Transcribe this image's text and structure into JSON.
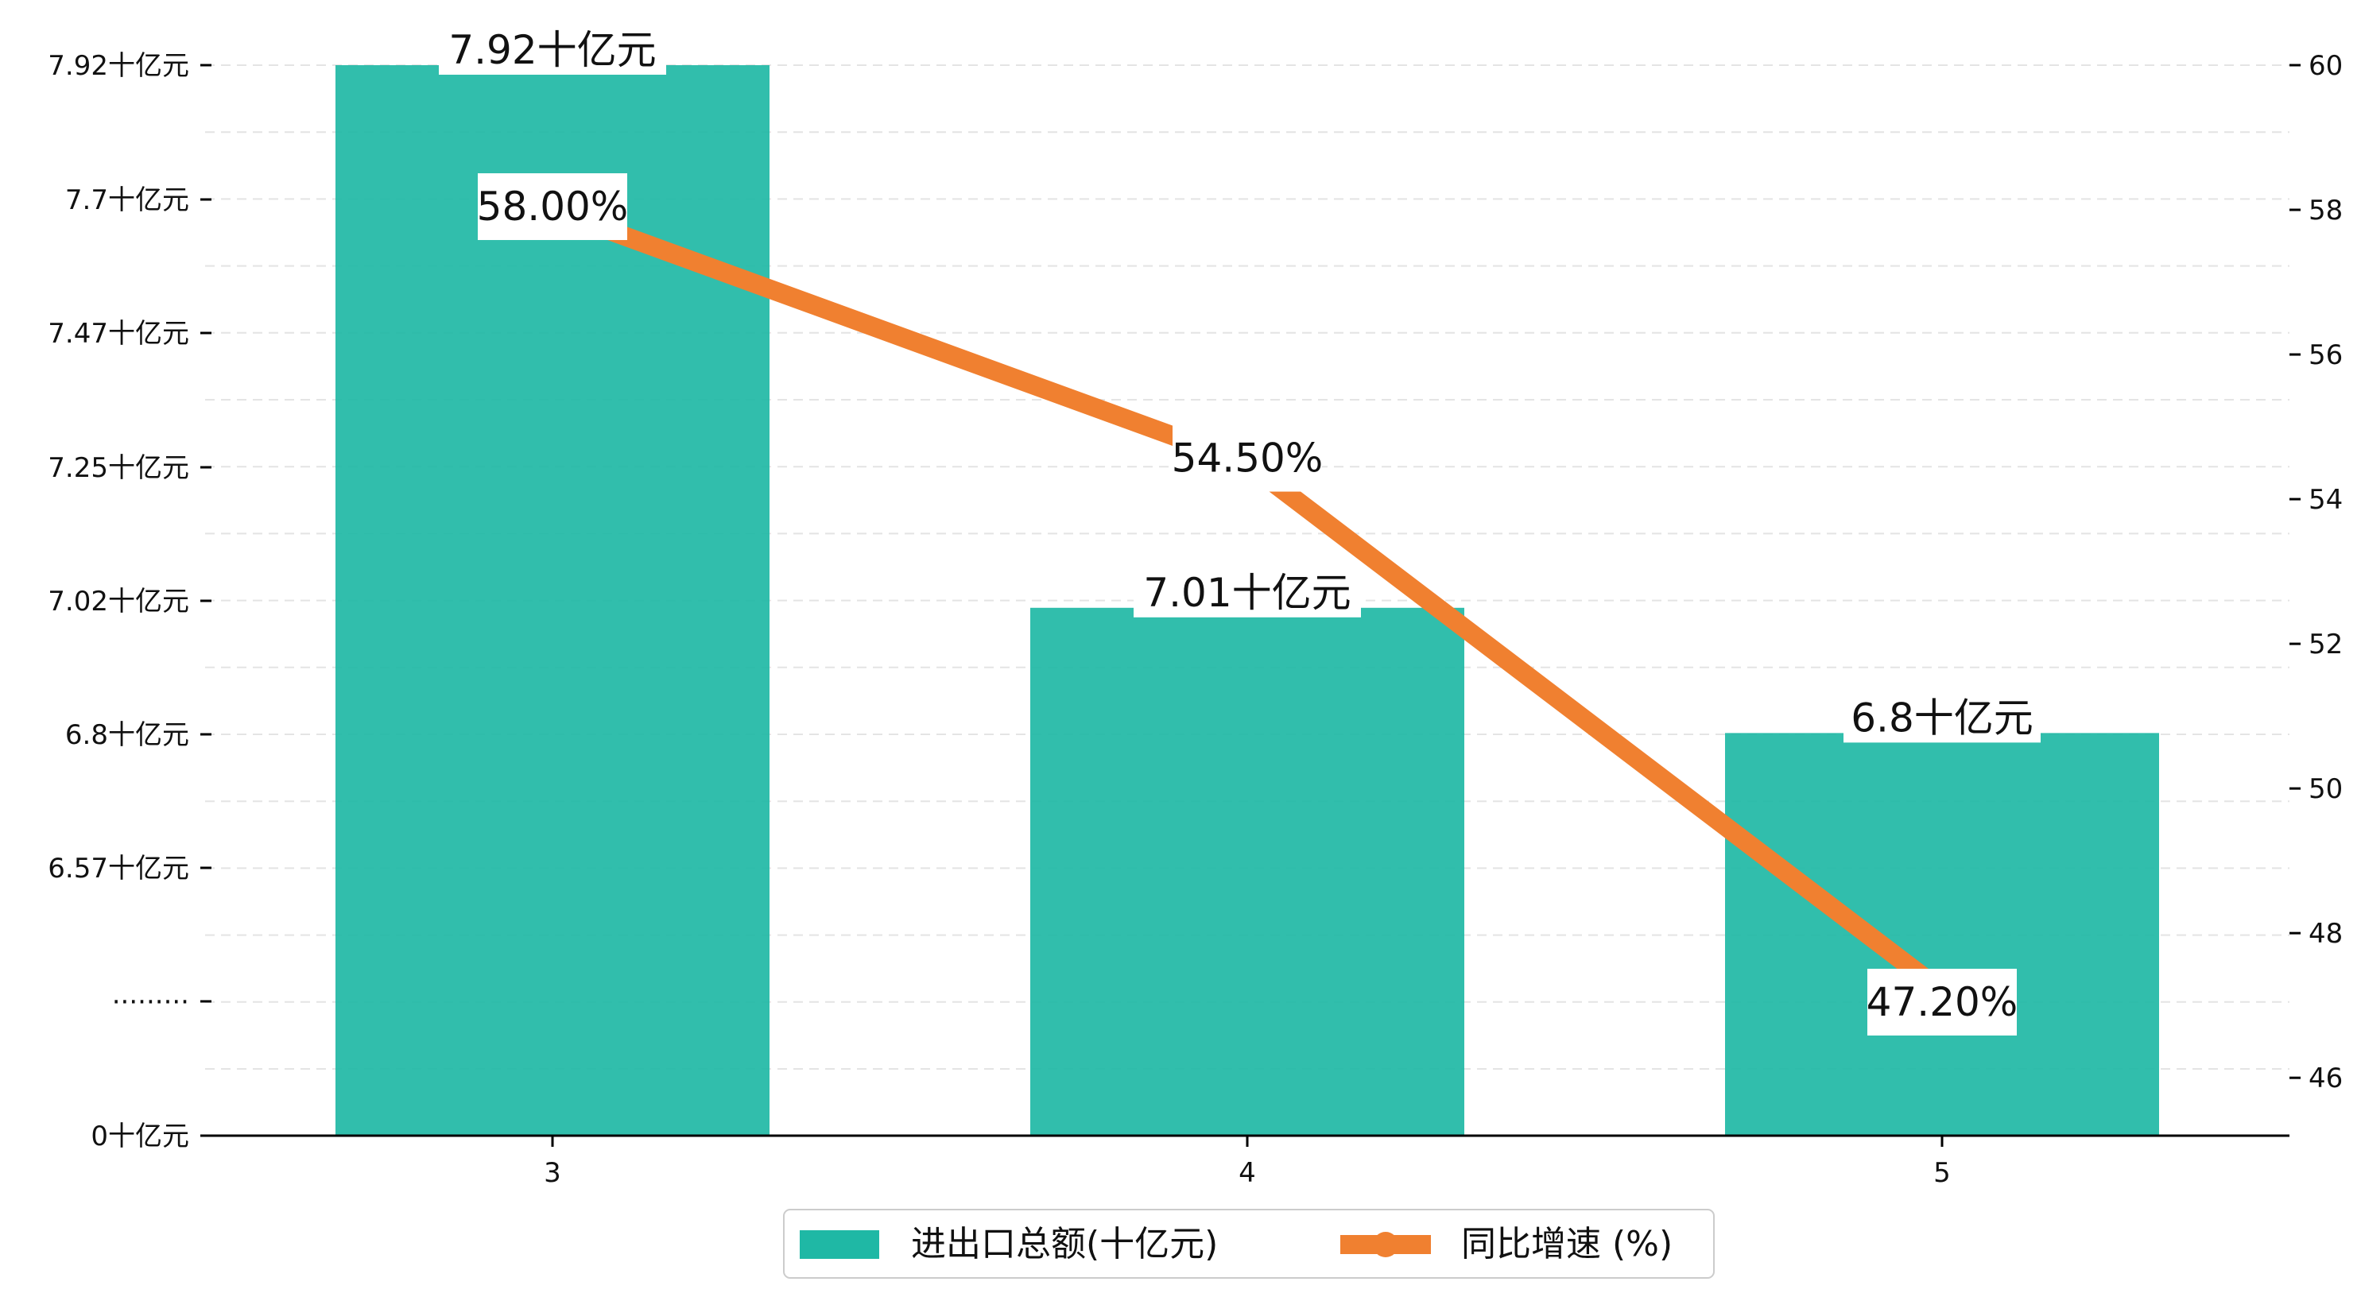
{
  "chart_data": {
    "type": "bar+line",
    "title": "",
    "xlabel": "",
    "ylabel": "",
    "categories": [
      "3",
      "4",
      "5"
    ],
    "bar_series": {
      "name": "进出口总额(十亿元)",
      "values": [
        7.92,
        7.01,
        6.8
      ],
      "labels": [
        "7.92十亿元",
        "7.01十亿元",
        "6.8十亿元"
      ],
      "color": "#1fb8a5"
    },
    "line_series": {
      "name": "同比增速 (%)",
      "values": [
        58.0,
        54.5,
        47.2
      ],
      "labels": [
        "58.00%",
        "54.50%",
        "47.20%"
      ],
      "color": "#f08030"
    },
    "left_axis": {
      "tick_labels": [
        "0十亿元",
        "·········",
        "6.57十亿元",
        "6.8十亿元",
        "7.02十亿元",
        "7.25十亿元",
        "7.47十亿元",
        "7.7十亿元",
        "7.92十亿元"
      ],
      "broken": true,
      "visible_range": [
        6.35,
        7.92
      ]
    },
    "right_axis": {
      "ticks": [
        46,
        48,
        50,
        52,
        54,
        56,
        58,
        60
      ],
      "ylim": [
        45.2,
        60
      ]
    },
    "grid": "horizontal-dashed",
    "legend_position": "bottom-center"
  }
}
